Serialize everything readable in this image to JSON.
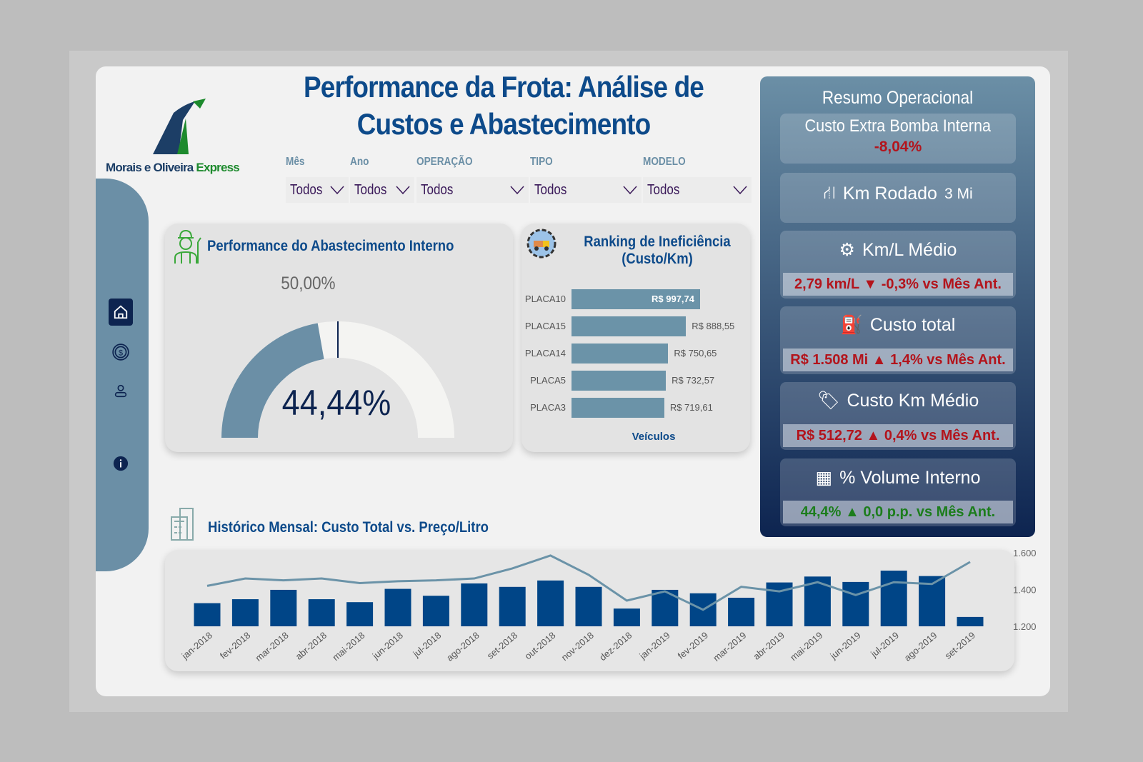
{
  "header": {
    "title_line1": "Performance da Frota: Análise de",
    "title_line2": "Custos e Abastecimento",
    "logo_text_a": "Morais e Oliveira",
    "logo_text_b": "Express"
  },
  "filters": [
    {
      "label": "Mês",
      "value": "Todos"
    },
    {
      "label": "Ano",
      "value": "Todos"
    },
    {
      "label": "OPERAÇÃO",
      "value": "Todos"
    },
    {
      "label": "TIPO",
      "value": "Todos"
    },
    {
      "label": "MODELO",
      "value": "Todos"
    }
  ],
  "sidebar": {
    "items": [
      "home-icon",
      "dollar-icon",
      "user-icon",
      "info-icon"
    ]
  },
  "gauge": {
    "title": "Performance do Abastecimento Interno",
    "value": 44.44,
    "value_label": "44,44%",
    "target": 50,
    "target_label": "50,00%",
    "min": 0,
    "max": 100,
    "colors": {
      "fill": "#6b8fa6",
      "track": "#f4f4f2",
      "target": "#0d2450"
    }
  },
  "ranking": {
    "title_line1": "Ranking de Ineficiência",
    "title_line2": "(Custo/Km)",
    "xlabel": "Veículos",
    "items": [
      {
        "label": "PLACA10",
        "value": 997.74,
        "text": "R$ 997,74"
      },
      {
        "label": "PLACA15",
        "value": 888.55,
        "text": "R$ 888,55"
      },
      {
        "label": "PLACA14",
        "value": 750.65,
        "text": "R$ 750,65"
      },
      {
        "label": "PLACA5",
        "value": 732.57,
        "text": "R$ 732,57"
      },
      {
        "label": "PLACA3",
        "value": 719.61,
        "text": "R$ 719,61"
      }
    ]
  },
  "summary": {
    "title": "Resumo Operacional",
    "extra": {
      "label": "Custo Extra Bomba Interna",
      "value": "-8,04%"
    },
    "km": {
      "label": "Km Rodado",
      "value": "3 Mi"
    },
    "kml": {
      "label": "Km/L Médio",
      "value": "2,79 km/L ▼ -0,3% vs Mês Ant."
    },
    "custo": {
      "label": "Custo total",
      "value": "R$ 1.508 Mi ▲ 1,4% vs Mês Ant."
    },
    "custokm": {
      "label": "Custo Km Médio",
      "value": "R$ 512,72 ▲ 0,4% vs Mês Ant."
    },
    "volume": {
      "label": "% Volume Interno",
      "value": "44,4% ▲ 0,0 p.p. vs Mês Ant."
    }
  },
  "chart_data": {
    "type": "bar+line",
    "title": "Histórico Mensal: Custo Total vs. Preço/Litro",
    "categories": [
      "jan-2018",
      "fev-2018",
      "mar-2018",
      "abr-2018",
      "mai-2018",
      "jun-2018",
      "jul-2018",
      "ago-2018",
      "set-2018",
      "out-2018",
      "nov-2018",
      "dez-2018",
      "jan-2019",
      "fev-2019",
      "mar-2019",
      "abr-2019",
      "mai-2019",
      "jun-2019",
      "jul-2019",
      "ago-2019",
      "set-2019"
    ],
    "series": [
      {
        "type": "bar",
        "values": [
          47,
          55,
          74,
          55,
          49,
          76,
          62,
          87,
          80,
          93,
          80,
          36,
          74,
          67,
          58,
          89,
          101,
          90,
          113,
          102,
          19
        ],
        "color": "#004587"
      },
      {
        "type": "line",
        "axis": "right",
        "values": [
          1420,
          1460,
          1450,
          1460,
          1435,
          1445,
          1450,
          1460,
          1515,
          1585,
          1480,
          1340,
          1390,
          1290,
          1415,
          1390,
          1440,
          1370,
          1440,
          1430,
          1550
        ],
        "color": "#6b93a8"
      }
    ],
    "right_axis": {
      "ticks": [
        "1.600",
        "1.400",
        "1.200"
      ],
      "range": [
        1200,
        1600
      ]
    },
    "grid": false
  }
}
